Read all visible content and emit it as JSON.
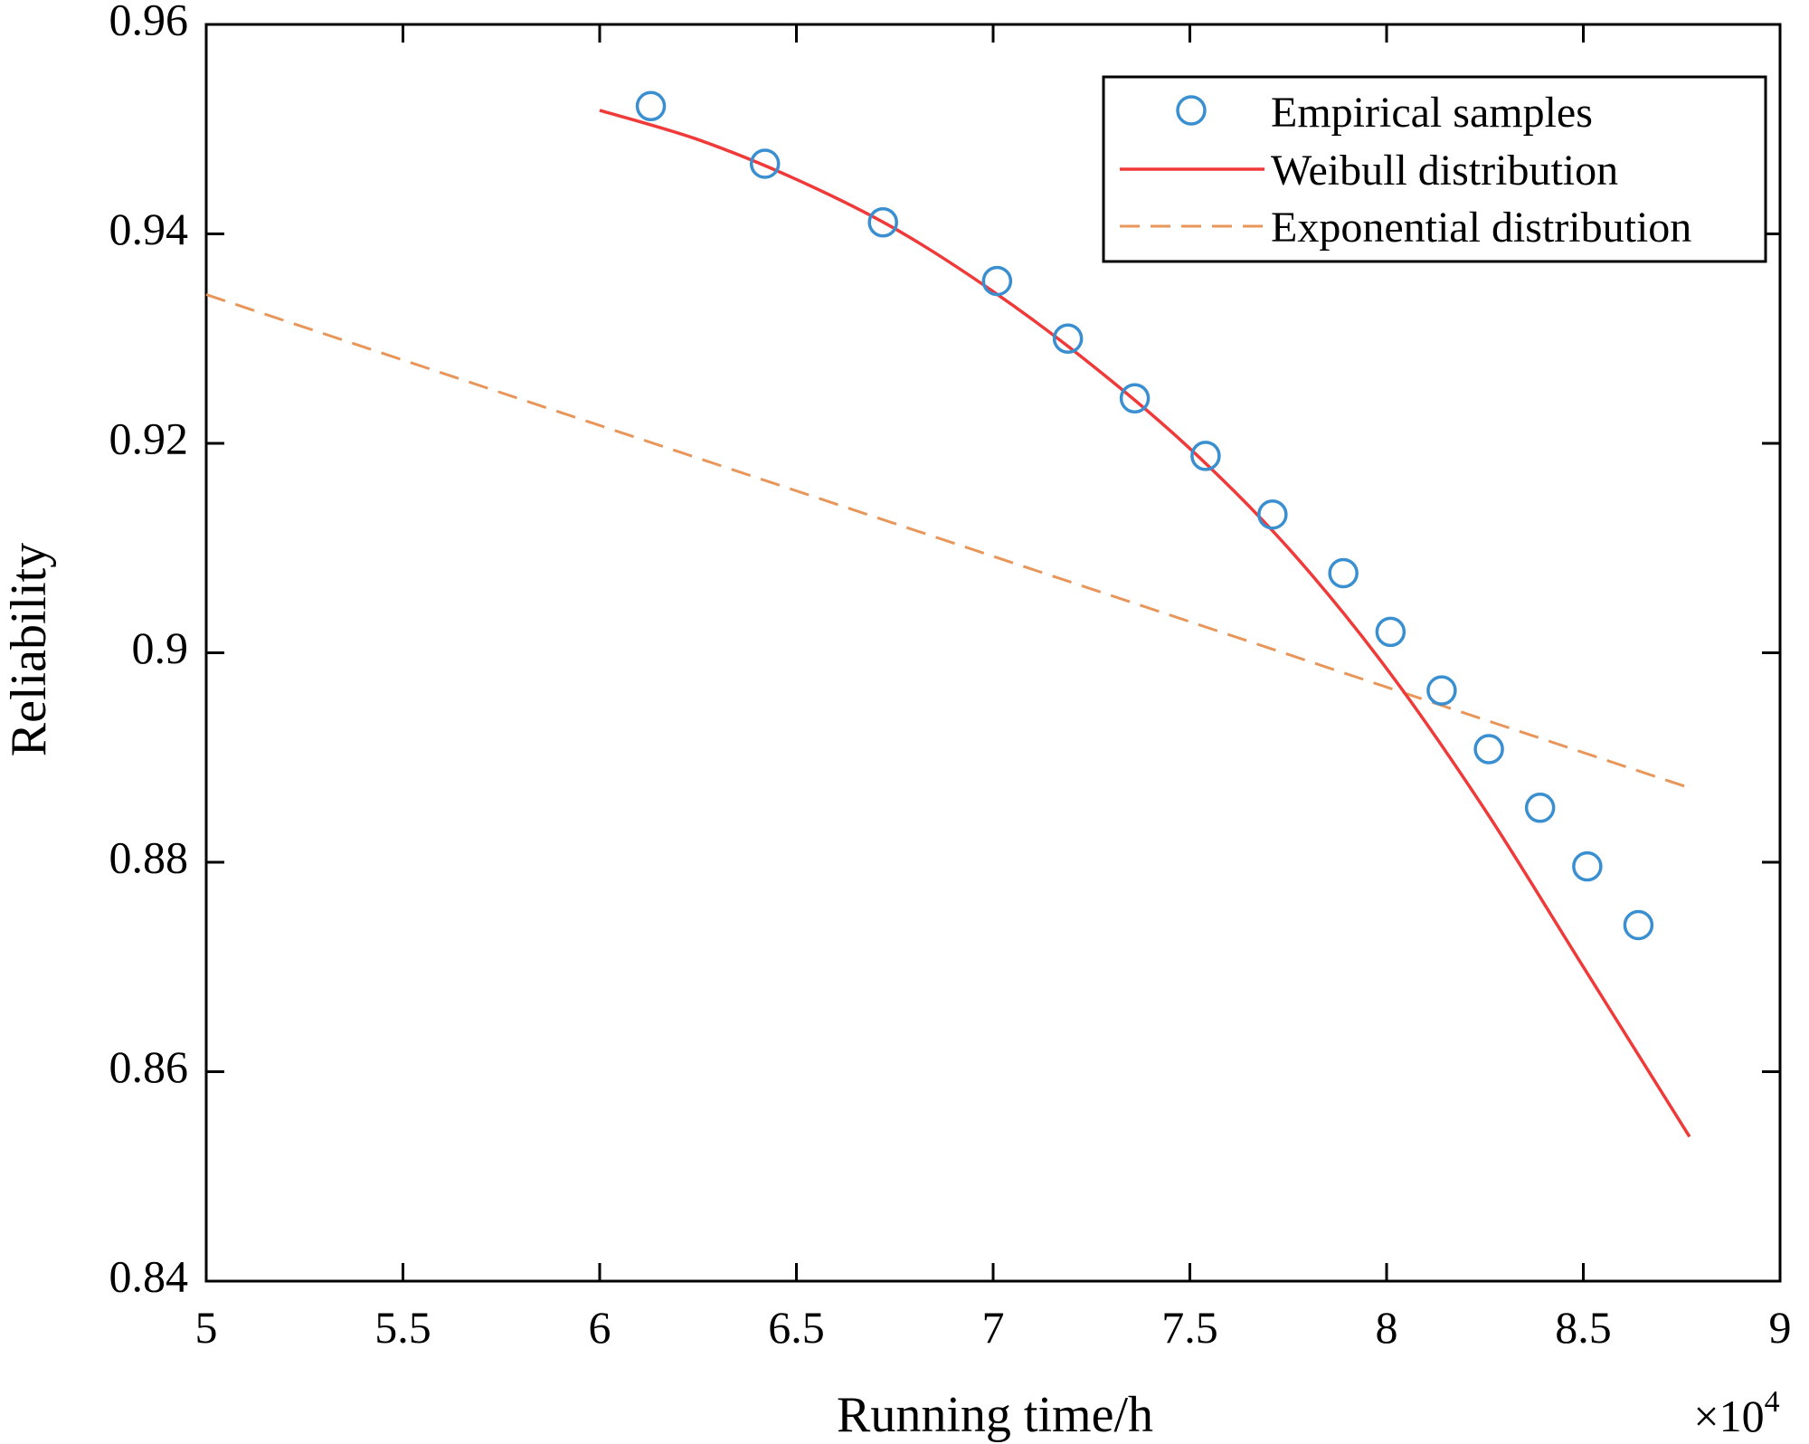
{
  "chart_data": {
    "type": "scatter",
    "xlabel": "Running time/h",
    "ylabel": "Reliability",
    "x_exponent_label": "×10",
    "x_exponent_power": "4",
    "xlim": [
      5,
      9
    ],
    "ylim": [
      0.84,
      0.96
    ],
    "x_ticks": [
      5,
      5.5,
      6,
      6.5,
      7,
      7.5,
      8,
      8.5,
      9
    ],
    "x_tick_labels": [
      "5",
      "5.5",
      "6",
      "6.5",
      "7",
      "7.5",
      "8",
      "8.5",
      "9"
    ],
    "y_ticks": [
      0.84,
      0.86,
      0.88,
      0.9,
      0.92,
      0.94,
      0.96
    ],
    "y_tick_labels": [
      "0.84",
      "0.86",
      "0.88",
      "0.9",
      "0.92",
      "0.94",
      "0.96"
    ],
    "grid": false,
    "legend_position": "top-right",
    "series": [
      {
        "name": "Empirical samples",
        "style": "markers",
        "color": "#3a8fd0",
        "x": [
          6.13,
          6.42,
          6.72,
          7.01,
          7.19,
          7.36,
          7.54,
          7.71,
          7.89,
          8.01,
          8.14,
          8.26,
          8.39,
          8.51,
          8.64
        ],
        "y": [
          0.9522,
          0.9467,
          0.9411,
          0.9355,
          0.93,
          0.9243,
          0.9188,
          0.9132,
          0.9076,
          0.902,
          0.8964,
          0.8908,
          0.8852,
          0.8796,
          0.874
        ]
      },
      {
        "name": "Weibull distribution",
        "style": "solid",
        "color": "#f03a3a",
        "x": [
          6.0,
          6.25,
          6.5,
          6.75,
          7.0,
          7.25,
          7.5,
          7.75,
          8.0,
          8.25,
          8.5,
          8.77
        ],
        "y": [
          0.9518,
          0.949,
          0.9452,
          0.9405,
          0.9345,
          0.9275,
          0.9195,
          0.91,
          0.8985,
          0.885,
          0.87,
          0.8538
        ]
      },
      {
        "name": "Exponential distribution",
        "style": "dashed",
        "color": "#e8965a",
        "x": [
          5.0,
          8.77
        ],
        "y": [
          0.9342,
          0.8871
        ]
      }
    ]
  }
}
